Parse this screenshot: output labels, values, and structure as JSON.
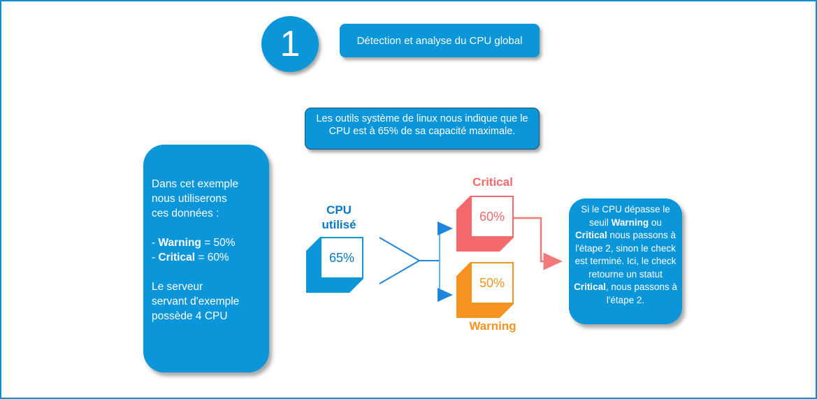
{
  "colors": {
    "primary_blue": "#0a96d8",
    "page_border_blue": "#0a8fd2",
    "node_text_blue": "#0b78c2",
    "critical_red": "#f4696b",
    "warning_orange": "#f79320",
    "connector_blue": "#1e86dd",
    "connector_light_blue": "#62b2e9",
    "critical_arrow_red": "#f3787a"
  },
  "step_badge": {
    "number": "1"
  },
  "header": {
    "title": "Détection et analyse du CPU global"
  },
  "info_box": {
    "text": "Les outils système de linux nous indique que le CPU est à 65% de sa capacité maximale."
  },
  "example_box": {
    "lines": [
      {
        "text": "Dans cet exemple"
      },
      {
        "text": "nous utiliserons"
      },
      {
        "text": "ces données :"
      },
      {
        "text": ""
      },
      {
        "prefix": "- ",
        "bold": "Warning",
        "suffix": " = 50%"
      },
      {
        "prefix": "- ",
        "bold": "Critical",
        "suffix": " = 60%"
      },
      {
        "text": ""
      },
      {
        "text": "Le serveur"
      },
      {
        "text": "servant d'exemple"
      },
      {
        "text": "possède 4 CPU"
      }
    ]
  },
  "cpu_node": {
    "label_line1": "CPU",
    "label_line2": "utilisé",
    "value": "65%"
  },
  "critical_node": {
    "label": "Critical",
    "value": "60%"
  },
  "warning_node": {
    "label": "Warning",
    "value": "50%"
  },
  "decision_box": {
    "segments": [
      {
        "t": "Si le CPU dépasse le seuil "
      },
      {
        "t": "Warning",
        "b": true
      },
      {
        "t": " ou "
      },
      {
        "t": "Critical",
        "b": true
      },
      {
        "t": " nous passons à l'étape 2, sinon le check est terminé. Ici, le check retourne un statut "
      },
      {
        "t": "Critical",
        "b": true
      },
      {
        "t": ", nous passons à l'étape 2."
      }
    ]
  }
}
